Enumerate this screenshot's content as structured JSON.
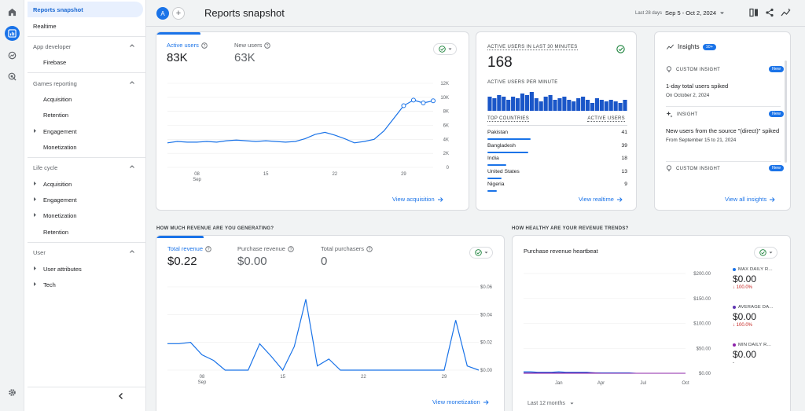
{
  "nav": {
    "reports_snapshot": "Reports snapshot",
    "realtime": "Realtime",
    "app_developer": "App developer",
    "firebase": "Firebase",
    "games_reporting": "Games reporting",
    "games_acquisition": "Acquisition",
    "games_retention": "Retention",
    "games_engagement": "Engagement",
    "games_monetization": "Monetization",
    "life_cycle": "Life cycle",
    "lc_acquisition": "Acquisition",
    "lc_engagement": "Engagement",
    "lc_monetization": "Monetization",
    "lc_retention": "Retention",
    "user": "User",
    "user_attributes": "User attributes",
    "tech": "Tech"
  },
  "header": {
    "avatar_letter": "A",
    "title": "Reports snapshot",
    "date_label": "Last 28 days",
    "date_range": "Sep 5 - Oct 2, 2024"
  },
  "users_card": {
    "active_users_label": "Active users",
    "active_users_value": "83K",
    "new_users_label": "New users",
    "new_users_value": "63K",
    "link": "View acquisition",
    "chart_data": {
      "type": "line",
      "y_ticks": [
        "12K",
        "10K",
        "8K",
        "6K",
        "4K",
        "2K",
        "0"
      ],
      "x_ticks": [
        "08\nSep",
        "15",
        "22",
        "29"
      ],
      "ylim": [
        0,
        12000
      ],
      "x_days": [
        5,
        6,
        7,
        8,
        9,
        10,
        11,
        12,
        13,
        14,
        15,
        16,
        17,
        18,
        19,
        20,
        21,
        22,
        23,
        24,
        25,
        26,
        27,
        28,
        29,
        30,
        31,
        32
      ],
      "values": [
        3500,
        3700,
        3600,
        3600,
        3700,
        3600,
        3800,
        3900,
        3800,
        3700,
        3800,
        3700,
        3600,
        3700,
        4100,
        4700,
        5000,
        4600,
        4100,
        3500,
        3700,
        4000,
        5200,
        7000,
        8800,
        9600,
        9200,
        9500
      ]
    }
  },
  "realtime_card": {
    "heading": "ACTIVE USERS IN LAST 30 MINUTES",
    "value": "168",
    "per_minute_label": "ACTIVE USERS PER MINUTE",
    "per_minute": [
      9,
      8,
      10,
      9,
      7,
      9,
      8,
      11,
      10,
      12,
      8,
      6,
      9,
      10,
      7,
      8,
      9,
      7,
      6,
      8,
      9,
      7,
      5,
      8,
      7,
      6,
      7,
      6,
      5,
      7
    ],
    "col_country": "TOP COUNTRIES",
    "col_users": "ACTIVE USERS",
    "countries": [
      {
        "name": "Pakistan",
        "value": "41",
        "share": 1.0
      },
      {
        "name": "Bangladesh",
        "value": "39",
        "share": 0.95
      },
      {
        "name": "India",
        "value": "18",
        "share": 0.44
      },
      {
        "name": "United States",
        "value": "13",
        "share": 0.32
      },
      {
        "name": "Nigeria",
        "value": "9",
        "share": 0.22
      }
    ],
    "link": "View realtime"
  },
  "insights_card": {
    "title": "Insights",
    "count": "10+",
    "items": [
      {
        "kind": "CUSTOM INSIGHT",
        "badge": "New",
        "headline": "1-day total users spiked",
        "detail": "On October 2, 2024"
      },
      {
        "kind": "INSIGHT",
        "badge": "New",
        "headline": "New users from the source \"(direct)\" spiked",
        "detail": "From September 15 to 21, 2024"
      },
      {
        "kind": "CUSTOM INSIGHT",
        "badge": "New",
        "headline": "",
        "detail": ""
      }
    ],
    "link": "View all insights"
  },
  "revenue_section": {
    "heading": "HOW MUCH REVENUE ARE YOU GENERATING?",
    "total_revenue_label": "Total revenue",
    "total_revenue_value": "$0.22",
    "purchase_revenue_label": "Purchase revenue",
    "purchase_revenue_value": "$0.00",
    "total_purchasers_label": "Total purchasers",
    "total_purchasers_value": "0",
    "link": "View monetization",
    "chart_data": {
      "type": "line",
      "y_ticks": [
        "$0.06",
        "$0.04",
        "$0.02",
        "$0.00"
      ],
      "x_ticks": [
        "08\nSep",
        "15",
        "22",
        "29"
      ],
      "ylim": [
        0,
        0.06
      ],
      "x_days": [
        5,
        6,
        7,
        8,
        9,
        10,
        11,
        12,
        13,
        14,
        15,
        16,
        17,
        18,
        19,
        20,
        21,
        22,
        23,
        24,
        25,
        26,
        27,
        28,
        29,
        30,
        31,
        32
      ],
      "values": [
        0.019,
        0.019,
        0.02,
        0.011,
        0.007,
        0.0,
        0.0,
        0.0,
        0.019,
        0.01,
        0.0,
        0.017,
        0.051,
        0.003,
        0.008,
        0.0,
        0.0,
        0.0,
        0.0,
        0.0,
        0.0,
        0.0,
        0.0,
        0.0,
        0.0,
        0.036,
        0.003,
        0.0
      ]
    }
  },
  "trends_section": {
    "heading": "HOW HEALTHY ARE YOUR REVENUE TRENDS?",
    "card_title": "Purchase revenue heartbeat",
    "footer": "Last 12 months",
    "legend": [
      {
        "label": "MAX DAILY R...",
        "value": "$0.00",
        "delta": "100.0%",
        "color": "#1a73e8"
      },
      {
        "label": "AVERAGE DA...",
        "value": "$0.00",
        "delta": "100.0%",
        "color": "#5e35b1"
      },
      {
        "label": "MIN DAILY R...",
        "value": "$0.00",
        "delta": "-",
        "color": "#8e24aa"
      }
    ],
    "chart_data": {
      "type": "line",
      "y_ticks": [
        "$200.00",
        "$150.00",
        "$100.00",
        "$50.00",
        "$0.00"
      ],
      "x_ticks": [
        "Jan",
        "Apr",
        "Jul",
        "Oct"
      ],
      "ylim": [
        0,
        200
      ],
      "series": [
        {
          "values": [
            3,
            3,
            2,
            2,
            2,
            3,
            2,
            2,
            2,
            2,
            1,
            1,
            1,
            1,
            1,
            1,
            0,
            0,
            0,
            0,
            0,
            0,
            0,
            0
          ],
          "color": "#1a73e8"
        },
        {
          "values": [
            1,
            1,
            1,
            1,
            1,
            1,
            1,
            1,
            1,
            1,
            1,
            0,
            0,
            0,
            0,
            0,
            0,
            0,
            0,
            0,
            0,
            0,
            0,
            0
          ],
          "color": "#5e35b1"
        },
        {
          "values": [
            0,
            0,
            0,
            0,
            0,
            0,
            0,
            0,
            0,
            0,
            0,
            0,
            0,
            0,
            0,
            0,
            0,
            0,
            0,
            0,
            0,
            0,
            0,
            0
          ],
          "color": "#8e24aa"
        }
      ]
    }
  }
}
